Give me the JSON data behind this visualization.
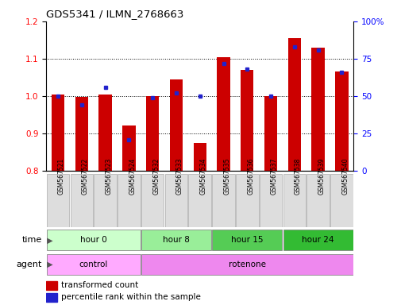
{
  "title": "GDS5341 / ILMN_2768663",
  "samples": [
    "GSM567521",
    "GSM567522",
    "GSM567523",
    "GSM567524",
    "GSM567532",
    "GSM567533",
    "GSM567534",
    "GSM567535",
    "GSM567536",
    "GSM567537",
    "GSM567538",
    "GSM567539",
    "GSM567540"
  ],
  "transformed_count": [
    1.005,
    0.998,
    1.005,
    0.922,
    0.999,
    1.045,
    0.875,
    1.105,
    1.07,
    1.0,
    1.155,
    1.13,
    1.065
  ],
  "percentile_rank": [
    50,
    44,
    56,
    21,
    49,
    52,
    50,
    72,
    68,
    50,
    83,
    81,
    66
  ],
  "ylim_left": [
    0.8,
    1.2
  ],
  "ylim_right": [
    0,
    100
  ],
  "y_ticks_left": [
    0.8,
    0.9,
    1.0,
    1.1,
    1.2
  ],
  "y_ticks_right": [
    0,
    25,
    50,
    75,
    100
  ],
  "bar_color": "#CC0000",
  "dot_color": "#2222CC",
  "time_groups": [
    {
      "label": "hour 0",
      "start": 0,
      "end": 4,
      "color": "#ccffcc"
    },
    {
      "label": "hour 8",
      "start": 4,
      "end": 7,
      "color": "#99ee99"
    },
    {
      "label": "hour 15",
      "start": 7,
      "end": 10,
      "color": "#55cc55"
    },
    {
      "label": "hour 24",
      "start": 10,
      "end": 13,
      "color": "#33bb33"
    }
  ],
  "agent_groups": [
    {
      "label": "control",
      "start": 0,
      "end": 4,
      "color": "#ffaaff"
    },
    {
      "label": "rotenone",
      "start": 4,
      "end": 13,
      "color": "#ee88ee"
    }
  ],
  "legend_items": [
    {
      "color": "#CC0000",
      "label": "transformed count"
    },
    {
      "color": "#2222CC",
      "label": "percentile rank within the sample"
    }
  ]
}
